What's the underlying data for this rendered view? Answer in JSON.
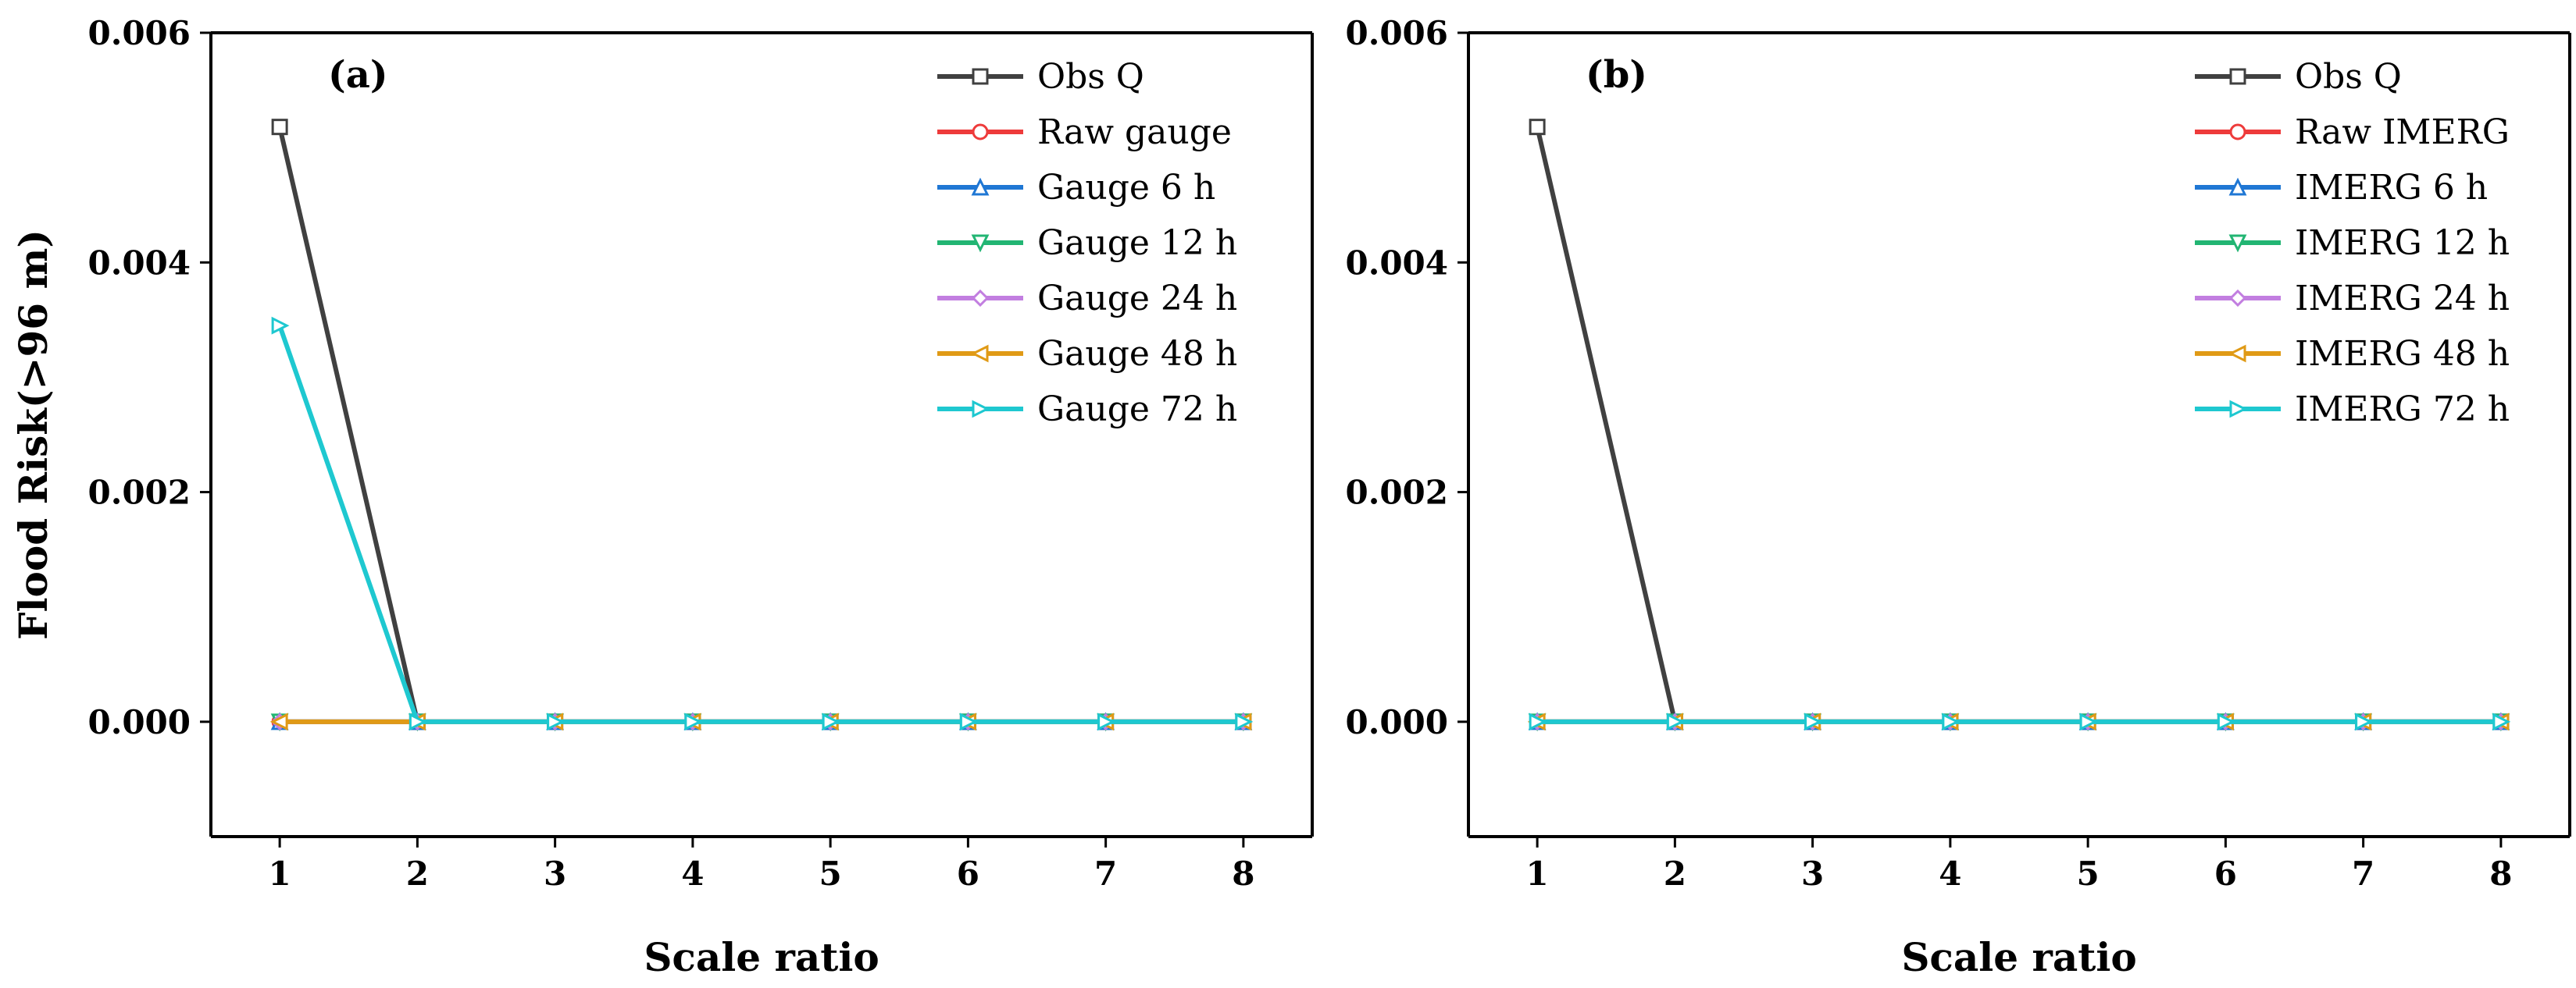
{
  "chart_data": [
    {
      "type": "line",
      "panel_label": "(a)",
      "xlabel": "Scale ratio",
      "ylabel": "Flood Risk(>96 m)",
      "x": [
        1,
        2,
        3,
        4,
        5,
        6,
        7,
        8
      ],
      "x_ticks": [
        "1",
        "2",
        "3",
        "4",
        "5",
        "6",
        "7",
        "8"
      ],
      "y_ticks": [
        "0.000",
        "0.002",
        "0.004",
        "0.006"
      ],
      "ylim": [
        -0.001,
        0.006
      ],
      "xlim": [
        0.5,
        8.5
      ],
      "legend_position": "top-right",
      "series": [
        {
          "name": "Obs Q",
          "marker": "square",
          "color": "#404040",
          "values": [
            0.00518,
            0,
            0,
            0,
            0,
            0,
            0,
            0
          ]
        },
        {
          "name": "Raw gauge",
          "marker": "circle",
          "color": "#ee3b3b",
          "values": [
            0,
            0,
            0,
            0,
            0,
            0,
            0,
            0
          ]
        },
        {
          "name": "Gauge 6 h",
          "marker": "triangle-up",
          "color": "#1f77d4",
          "values": [
            0,
            0,
            0,
            0,
            0,
            0,
            0,
            0
          ]
        },
        {
          "name": "Gauge 12 h",
          "marker": "triangle-down",
          "color": "#22b573",
          "values": [
            0,
            0,
            0,
            0,
            0,
            0,
            0,
            0
          ]
        },
        {
          "name": "Gauge 24 h",
          "marker": "diamond",
          "color": "#c27ee0",
          "values": [
            0,
            0,
            0,
            0,
            0,
            0,
            0,
            0
          ]
        },
        {
          "name": "Gauge 48 h",
          "marker": "triangle-left",
          "color": "#e09a16",
          "values": [
            0,
            0,
            0,
            0,
            0,
            0,
            0,
            0
          ]
        },
        {
          "name": "Gauge 72 h",
          "marker": "triangle-right",
          "color": "#1ec8d0",
          "values": [
            0.00345,
            0,
            0,
            0,
            0,
            0,
            0,
            0
          ]
        }
      ]
    },
    {
      "type": "line",
      "panel_label": "(b)",
      "xlabel": "Scale ratio",
      "ylabel": "",
      "x": [
        1,
        2,
        3,
        4,
        5,
        6,
        7,
        8
      ],
      "x_ticks": [
        "1",
        "2",
        "3",
        "4",
        "5",
        "6",
        "7",
        "8"
      ],
      "y_ticks": [
        "0.000",
        "0.002",
        "0.004",
        "0.006"
      ],
      "ylim": [
        -0.001,
        0.006
      ],
      "xlim": [
        0.5,
        8.5
      ],
      "legend_position": "top-right",
      "series": [
        {
          "name": "Obs Q",
          "marker": "square",
          "color": "#404040",
          "values": [
            0.00518,
            0,
            0,
            0,
            0,
            0,
            0,
            0
          ]
        },
        {
          "name": "Raw IMERG",
          "marker": "circle",
          "color": "#ee3b3b",
          "values": [
            0,
            0,
            0,
            0,
            0,
            0,
            0,
            0
          ]
        },
        {
          "name": "IMERG 6 h",
          "marker": "triangle-up",
          "color": "#1f77d4",
          "values": [
            0,
            0,
            0,
            0,
            0,
            0,
            0,
            0
          ]
        },
        {
          "name": "IMERG 12 h",
          "marker": "triangle-down",
          "color": "#22b573",
          "values": [
            0,
            0,
            0,
            0,
            0,
            0,
            0,
            0
          ]
        },
        {
          "name": "IMERG 24 h",
          "marker": "diamond",
          "color": "#c27ee0",
          "values": [
            0,
            0,
            0,
            0,
            0,
            0,
            0,
            0
          ]
        },
        {
          "name": "IMERG 48 h",
          "marker": "triangle-left",
          "color": "#e09a16",
          "values": [
            0,
            0,
            0,
            0,
            0,
            0,
            0,
            0
          ]
        },
        {
          "name": "IMERG 72 h",
          "marker": "triangle-right",
          "color": "#1ec8d0",
          "values": [
            0,
            0,
            0,
            0,
            0,
            0,
            0,
            0
          ]
        }
      ]
    }
  ]
}
